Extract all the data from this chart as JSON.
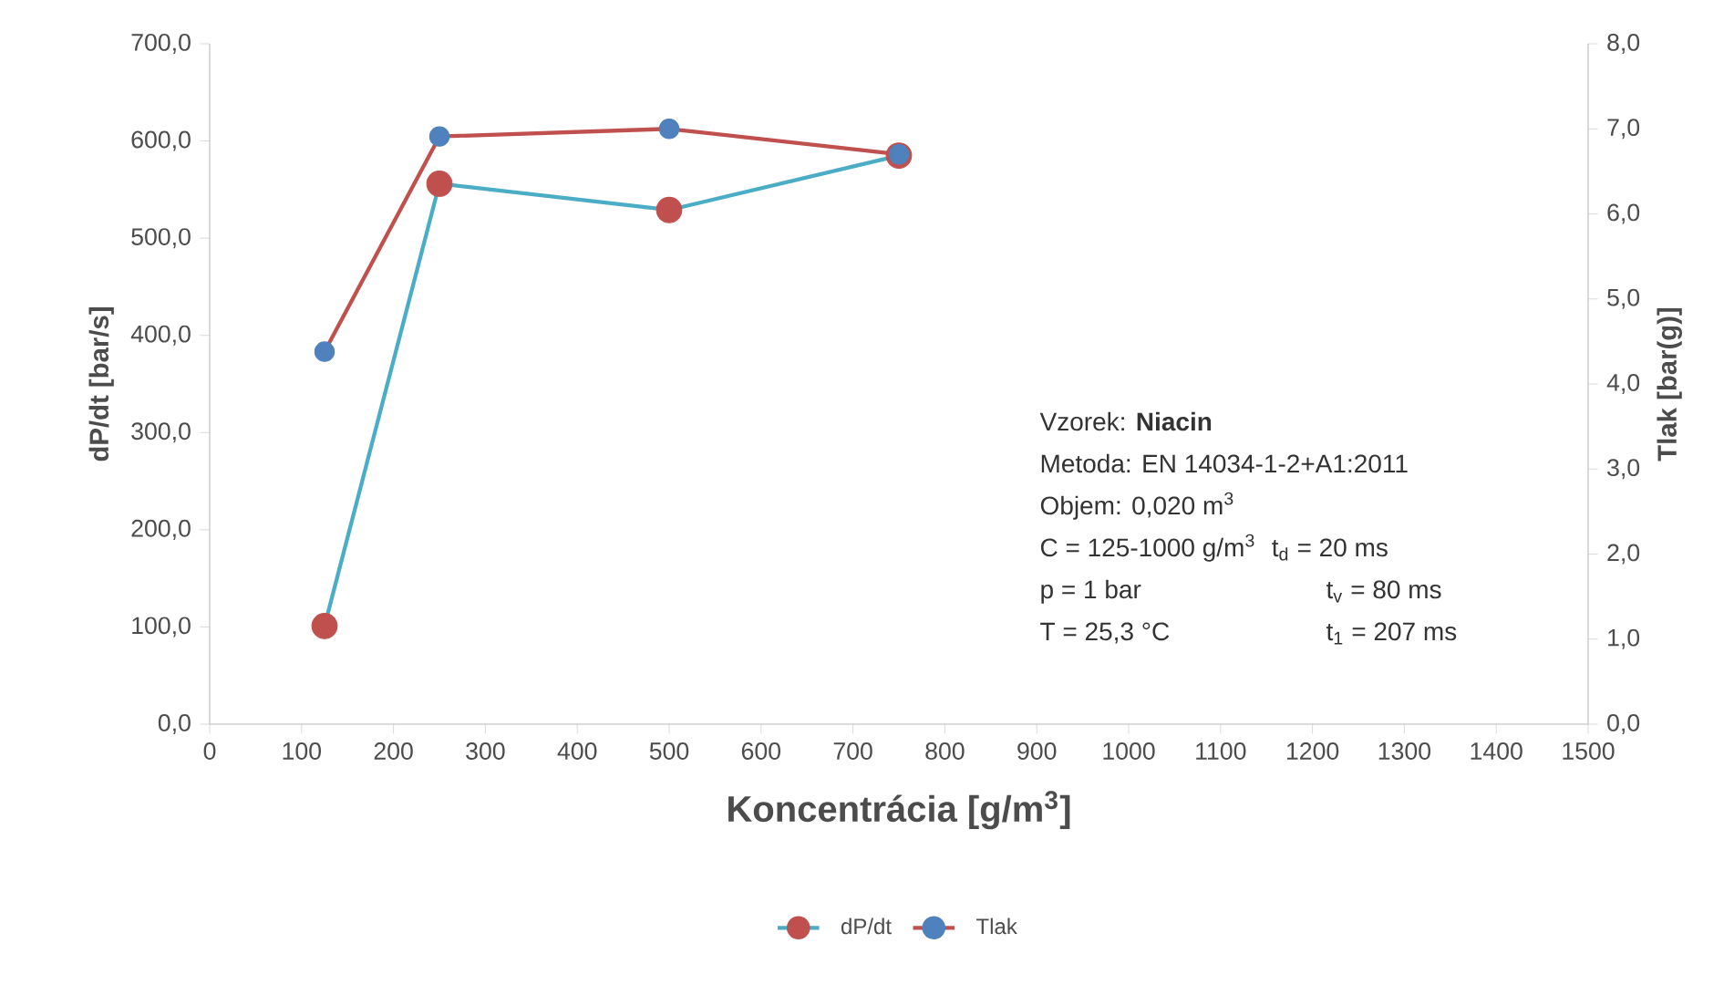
{
  "chart_data": {
    "type": "line",
    "xlabel": "Koncentrácia [g/m$^{3}$]",
    "ylabel": "dP/dt [bar/s]",
    "y2label": "Tlak [bar(g)]",
    "series": [
      {
        "name": "dP/dt",
        "color": "#4bacc6",
        "colors": [
          "#c0504d",
          "#c0504d",
          "#c0504d",
          "#c0504d"
        ],
        "x": [
          125,
          250,
          500,
          750
        ],
        "values": [
          101,
          556,
          529,
          585
        ]
      },
      {
        "name": "Tlak",
        "color": "#c0504d",
        "colors": [
          "#4f81bd",
          "#4f81bd",
          "#4f81bd",
          "#4f81bd"
        ],
        "axis": "y2",
        "x": [
          125,
          250,
          500,
          750
        ],
        "values": [
          4.38,
          6.91,
          7.0,
          6.7
        ]
      }
    ],
    "xlim": [
      0,
      1500
    ],
    "xticks": [
      0,
      100,
      200,
      300,
      400,
      500,
      600,
      700,
      800,
      900,
      1000,
      1100,
      1200,
      1300,
      1400,
      1500
    ],
    "ylim": [
      0,
      700
    ],
    "yticks": [
      {
        "value": 0,
        "label": "0,0"
      },
      {
        "value": 100,
        "label": "100,0"
      },
      {
        "value": 200,
        "label": "200,0"
      },
      {
        "value": 300,
        "label": "300,0"
      },
      {
        "value": 400,
        "label": "400,0"
      },
      {
        "value": 500,
        "label": "500,0"
      },
      {
        "value": 600,
        "label": "600,0"
      },
      {
        "value": 700,
        "label": "700,0"
      }
    ],
    "y2lim": [
      0,
      8
    ],
    "y2ticks": [
      {
        "value": 0,
        "label": "0,0"
      },
      {
        "value": 1,
        "label": "1,0"
      },
      {
        "value": 2,
        "label": "2,0"
      },
      {
        "value": 3,
        "label": "3,0"
      },
      {
        "value": 4,
        "label": "4,0"
      },
      {
        "value": 5,
        "label": "5,0"
      },
      {
        "value": 6,
        "label": "6,0"
      },
      {
        "value": 7,
        "label": "7,0"
      },
      {
        "value": 8,
        "label": "8,0"
      }
    ],
    "marker": "circle",
    "legend": "bottom",
    "annotations": [
      "Vzorek: **Niacin**",
      "Metoda: EN 14034-1-2+A1:2011",
      "Objem: 0,020 m$^{3}$",
      "C = 125-1000 g/m$^{3}$",
      "p = 1 bar",
      "T = 25,3 °C",
      "t$_{d}$ = 20 ms",
      "t$_{v}$ = 80 ms",
      "t$_{1}$ = 207 ms"
    ]
  }
}
